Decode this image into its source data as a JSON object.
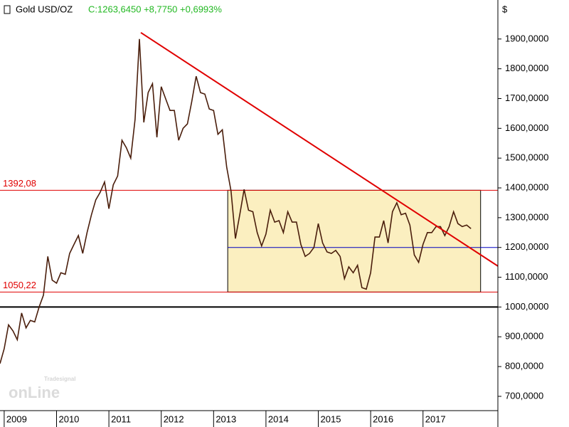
{
  "chart_data": {
    "type": "line",
    "instrument": "Gold USD/OZ",
    "quote": "C:1263,6450 +8,7750 +0,6993%",
    "y_unit": "$",
    "watermark": {
      "brand": "Tradesignal",
      "logo": "onLine"
    },
    "series": [
      {
        "name": "Gold USD/OZ",
        "color": "#4a1e0c",
        "x": [
          2008.92,
          2009.0,
          2009.083,
          2009.167,
          2009.25,
          2009.333,
          2009.417,
          2009.5,
          2009.583,
          2009.667,
          2009.75,
          2009.833,
          2009.917,
          2010.0,
          2010.083,
          2010.167,
          2010.25,
          2010.333,
          2010.417,
          2010.5,
          2010.583,
          2010.667,
          2010.75,
          2010.833,
          2010.917,
          2011.0,
          2011.083,
          2011.167,
          2011.25,
          2011.333,
          2011.417,
          2011.5,
          2011.583,
          2011.667,
          2011.75,
          2011.833,
          2011.917,
          2012.0,
          2012.083,
          2012.167,
          2012.25,
          2012.333,
          2012.417,
          2012.5,
          2012.583,
          2012.667,
          2012.75,
          2012.833,
          2012.917,
          2013.0,
          2013.083,
          2013.167,
          2013.25,
          2013.333,
          2013.417,
          2013.5,
          2013.583,
          2013.667,
          2013.75,
          2013.833,
          2013.917,
          2014.0,
          2014.083,
          2014.167,
          2014.25,
          2014.333,
          2014.417,
          2014.5,
          2014.583,
          2014.667,
          2014.75,
          2014.833,
          2014.917,
          2015.0,
          2015.083,
          2015.167,
          2015.25,
          2015.333,
          2015.417,
          2015.5,
          2015.583,
          2015.667,
          2015.75,
          2015.833,
          2015.917,
          2016.0,
          2016.083,
          2016.167,
          2016.25,
          2016.333,
          2016.417,
          2016.5,
          2016.583,
          2016.667,
          2016.75,
          2016.833,
          2016.917,
          2017.0,
          2017.083,
          2017.167,
          2017.25,
          2017.333,
          2017.417,
          2017.5,
          2017.583,
          2017.667,
          2017.75,
          2017.833,
          2017.917
        ],
        "values": [
          810,
          860,
          940,
          920,
          890,
          980,
          930,
          955,
          950,
          1000,
          1040,
          1170,
          1090,
          1080,
          1115,
          1110,
          1180,
          1210,
          1240,
          1180,
          1250,
          1310,
          1360,
          1385,
          1420,
          1330,
          1410,
          1440,
          1560,
          1535,
          1500,
          1630,
          1900,
          1620,
          1720,
          1750,
          1570,
          1740,
          1700,
          1660,
          1660,
          1560,
          1600,
          1615,
          1690,
          1775,
          1720,
          1715,
          1665,
          1660,
          1580,
          1595,
          1470,
          1390,
          1230,
          1310,
          1395,
          1325,
          1320,
          1250,
          1205,
          1245,
          1325,
          1285,
          1290,
          1250,
          1320,
          1285,
          1285,
          1210,
          1170,
          1180,
          1200,
          1280,
          1215,
          1185,
          1180,
          1190,
          1170,
          1095,
          1135,
          1115,
          1140,
          1065,
          1060,
          1115,
          1235,
          1235,
          1290,
          1215,
          1320,
          1350,
          1310,
          1315,
          1275,
          1175,
          1150,
          1210,
          1250,
          1250,
          1270,
          1270,
          1240,
          1270,
          1320,
          1280,
          1270,
          1275,
          1263
        ]
      }
    ],
    "xlim": [
      2008.92,
      2018.43
    ],
    "ylim": [
      652,
      2031
    ],
    "xticks": [
      2009,
      2010,
      2011,
      2012,
      2013,
      2014,
      2015,
      2016,
      2017
    ],
    "yticks": [
      {
        "value": 700,
        "label": "700,0000"
      },
      {
        "value": 800,
        "label": "800,0000"
      },
      {
        "value": 900,
        "label": "900,0000"
      },
      {
        "value": 1000,
        "label": "1000,0000"
      },
      {
        "value": 1100,
        "label": "1100,0000"
      },
      {
        "value": 1200,
        "label": "1200,0000"
      },
      {
        "value": 1300,
        "label": "1300,0000"
      },
      {
        "value": 1400,
        "label": "1400,0000"
      },
      {
        "value": 1500,
        "label": "1500,0000"
      },
      {
        "value": 1600,
        "label": "1600,0000"
      },
      {
        "value": 1700,
        "label": "1700,0000"
      },
      {
        "value": 1800,
        "label": "1800,0000"
      },
      {
        "value": 1900,
        "label": "1900,0000"
      }
    ],
    "levels": [
      {
        "value": 1392.08,
        "label": "1392,08",
        "color": "#e00000"
      },
      {
        "value": 1050.22,
        "label": "1050,22",
        "color": "#e00000"
      }
    ],
    "support": {
      "value": 1000,
      "color": "#000000"
    },
    "midline": {
      "value": 1200,
      "color": "#0000c0",
      "x_start": 2013.27
    },
    "range_box": {
      "x": [
        2013.27,
        2018.1
      ],
      "color": "#fbefc0"
    },
    "trendline": {
      "x": [
        2011.61,
        2018.43
      ],
      "y": [
        1921.5,
        1137.4
      ],
      "color": "#e00000"
    }
  }
}
